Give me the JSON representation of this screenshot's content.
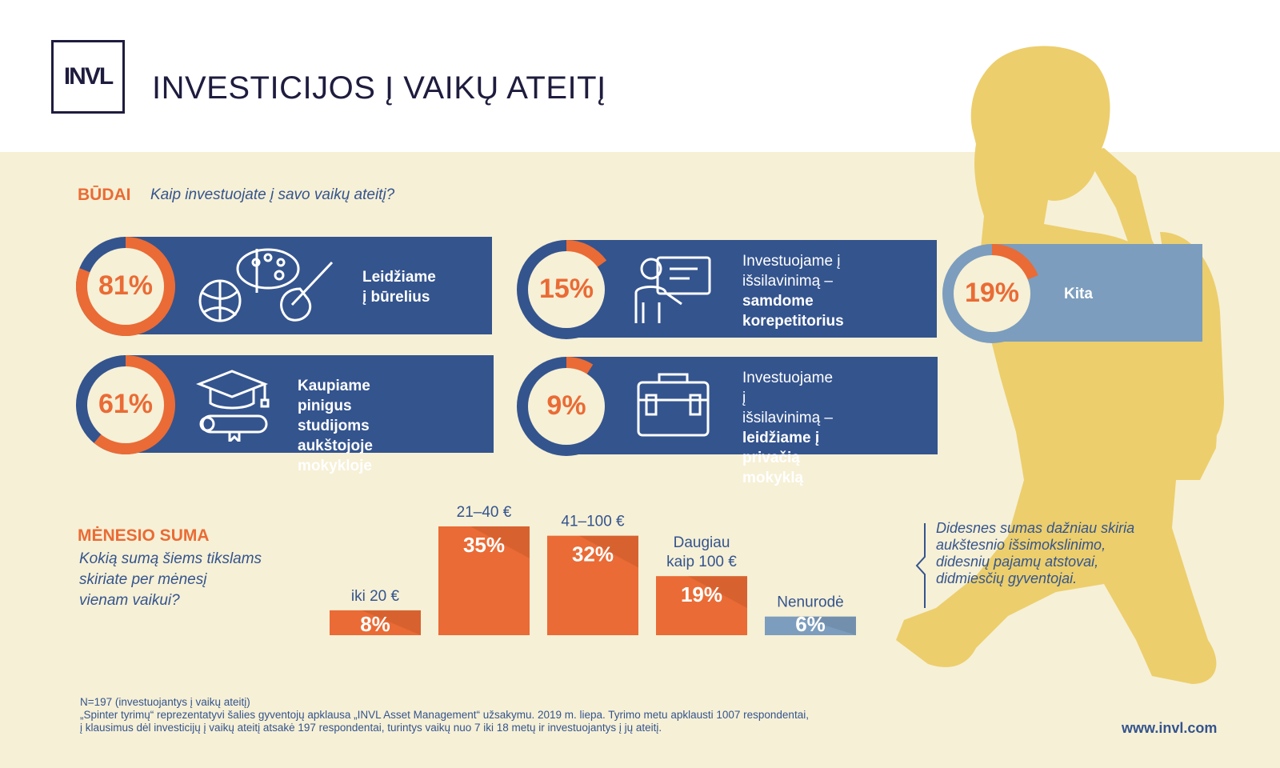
{
  "header": {
    "logo_text": "INVL",
    "title": "INVESTICIJOS Į VAIKŲ ATEITĮ"
  },
  "ways": {
    "heading": "BŪDAI",
    "question": "Kaip investuojate į savo vaikų ateitį?",
    "cards": [
      {
        "pct": "81%",
        "value": 81,
        "icon": "hobbies-icon",
        "line1": "Leidžiame",
        "line2": "į būrelius",
        "bold_lines": [],
        "color": "#34548e"
      },
      {
        "pct": "15%",
        "value": 15,
        "icon": "tutor-icon",
        "line1": "Investuojame į",
        "line2": "išsilavinimą –",
        "bold_lines": [
          "samdome",
          "korepetitorius"
        ],
        "color": "#34548e"
      },
      {
        "pct": "19%",
        "value": 19,
        "icon": "",
        "line1": "Kita",
        "line2": "",
        "bold_lines": [],
        "color": "#7c9dbd"
      },
      {
        "pct": "61%",
        "value": 61,
        "icon": "graduation-icon",
        "line1": "Kaupiame pinigus",
        "line2": "studijoms aukštojoje",
        "line3": "mokykloje",
        "bold_lines": [],
        "color": "#34548e"
      },
      {
        "pct": "9%",
        "value": 9,
        "icon": "briefcase-icon",
        "line1": "Investuojame į",
        "line2": "išsilavinimą –",
        "bold_lines": [
          "leidžiame į",
          "privačią mokyklą"
        ],
        "color": "#34548e"
      }
    ]
  },
  "monthly": {
    "heading": "MĖNESIO SUMA",
    "question_lines": [
      "Kokią sumą šiems tikslams",
      "skiriate per mėnesį",
      "vienam vaikui?"
    ]
  },
  "chart_data": {
    "type": "bar",
    "categories": [
      "iki 20 €",
      "21–40 €",
      "41–100 €",
      "Daugiau kaip 100 €",
      "Nenurodė"
    ],
    "category_lines": [
      [
        "iki 20 €"
      ],
      [
        "21–40 €"
      ],
      [
        "41–100 €"
      ],
      [
        "Daugiau",
        "kaip 100 €"
      ],
      [
        "Nenurodė"
      ]
    ],
    "values": [
      8,
      35,
      32,
      19,
      6
    ],
    "labels": [
      "8%",
      "35%",
      "32%",
      "19%",
      "6%"
    ],
    "colors": [
      "#ea6b35",
      "#ea6b35",
      "#ea6b35",
      "#ea6b35",
      "#7c9dbd"
    ],
    "ylim": [
      0,
      35
    ]
  },
  "note": "Didesnes sumas dažniau skiria aukštesnio išsimokslinimo, didesnių pajamų atstovai, didmiesčių gyventojai.",
  "footer": {
    "line1": "N=197 (investuojantys į vaikų ateitį)",
    "line2": "„Spinter tyrimų“ reprezentatyvi šalies gyventojų apklausa „INVL Asset Management“ užsakymu. 2019 m. liepa. Tyrimo metu apklausti 1007 respondentai,",
    "line3": "į klausimus dėl investicijų į vaikų ateitį atsakė 197 respondentai, turintys vaikų nuo 7 iki 18 metų ir investuojantys į jų ateitį.",
    "url": "www.invl.com"
  },
  "colors": {
    "navy": "#34548e",
    "orange": "#ea6b35",
    "cream": "#f6f0d6",
    "silhouette": "#ecce6c",
    "light_blue": "#7c9dbd",
    "dark": "#1e1c3e"
  }
}
